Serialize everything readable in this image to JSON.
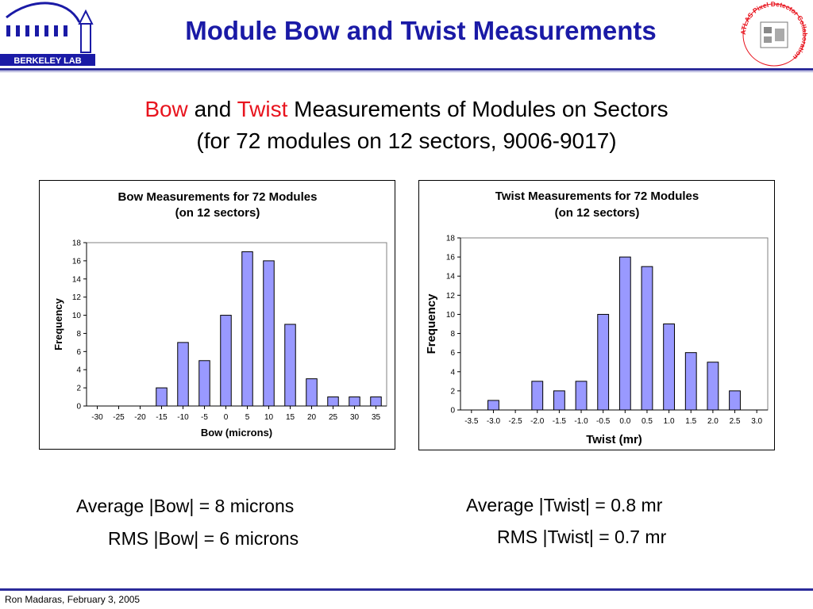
{
  "header": {
    "title": "Module Bow and Twist Measurements",
    "logo_left_text": "BERKELEY LAB",
    "logo_right_text": "ATLAS Pixel Detector Collaboration"
  },
  "subtitle": {
    "line1_bow": "Bow",
    "line1_and": "and",
    "line1_twist": "Twist",
    "line1_rest": "Measurements of Modules on Sectors",
    "line2": "(for 72 modules on 12 sectors, 9006-9017)"
  },
  "colors": {
    "title_blue": "#1a1aa6",
    "accent_red": "#e8141e",
    "bar_fill": "#9999ff",
    "rule": "#2b2b9a"
  },
  "chart_data": [
    {
      "type": "bar",
      "title": "Bow Measurements for 72 Modules",
      "subtitle": "(on 12 sectors)",
      "xlabel": "Bow (microns)",
      "ylabel": "Frequency",
      "categories": [
        "-30",
        "-25",
        "-20",
        "-15",
        "-10",
        "-5",
        "0",
        "5",
        "10",
        "15",
        "20",
        "25",
        "30",
        "35"
      ],
      "values": [
        0,
        0,
        0,
        2,
        7,
        5,
        10,
        17,
        16,
        9,
        3,
        1,
        1,
        1
      ],
      "ylim": [
        0,
        18
      ],
      "yticks": [
        0,
        2,
        4,
        6,
        8,
        10,
        12,
        14,
        16,
        18
      ],
      "grid": false,
      "legend": "none"
    },
    {
      "type": "bar",
      "title": "Twist Measurements for 72 Modules",
      "subtitle": "(on 12 sectors)",
      "xlabel": "Twist (mr)",
      "ylabel": "Frequency",
      "categories": [
        "-3.5",
        "-3.0",
        "-2.5",
        "-2.0",
        "-1.5",
        "-1.0",
        "-0.5",
        "0.0",
        "0.5",
        "1.0",
        "1.5",
        "2.0",
        "2.5",
        "3.0"
      ],
      "values": [
        0,
        1,
        0,
        3,
        2,
        3,
        10,
        16,
        15,
        9,
        6,
        5,
        2,
        0
      ],
      "ylim": [
        0,
        18
      ],
      "yticks": [
        0,
        2,
        4,
        6,
        8,
        10,
        12,
        14,
        16,
        18
      ],
      "grid": false,
      "legend": "none"
    }
  ],
  "stats": {
    "bow_avg": "Average |Bow| = 8 microns",
    "bow_rms": "RMS |Bow| = 6 microns",
    "twist_avg": "Average |Twist| = 0.8 mr",
    "twist_rms": "RMS |Twist| = 0.7 mr"
  },
  "footer": {
    "text": "Ron Madaras, February 3, 2005"
  }
}
